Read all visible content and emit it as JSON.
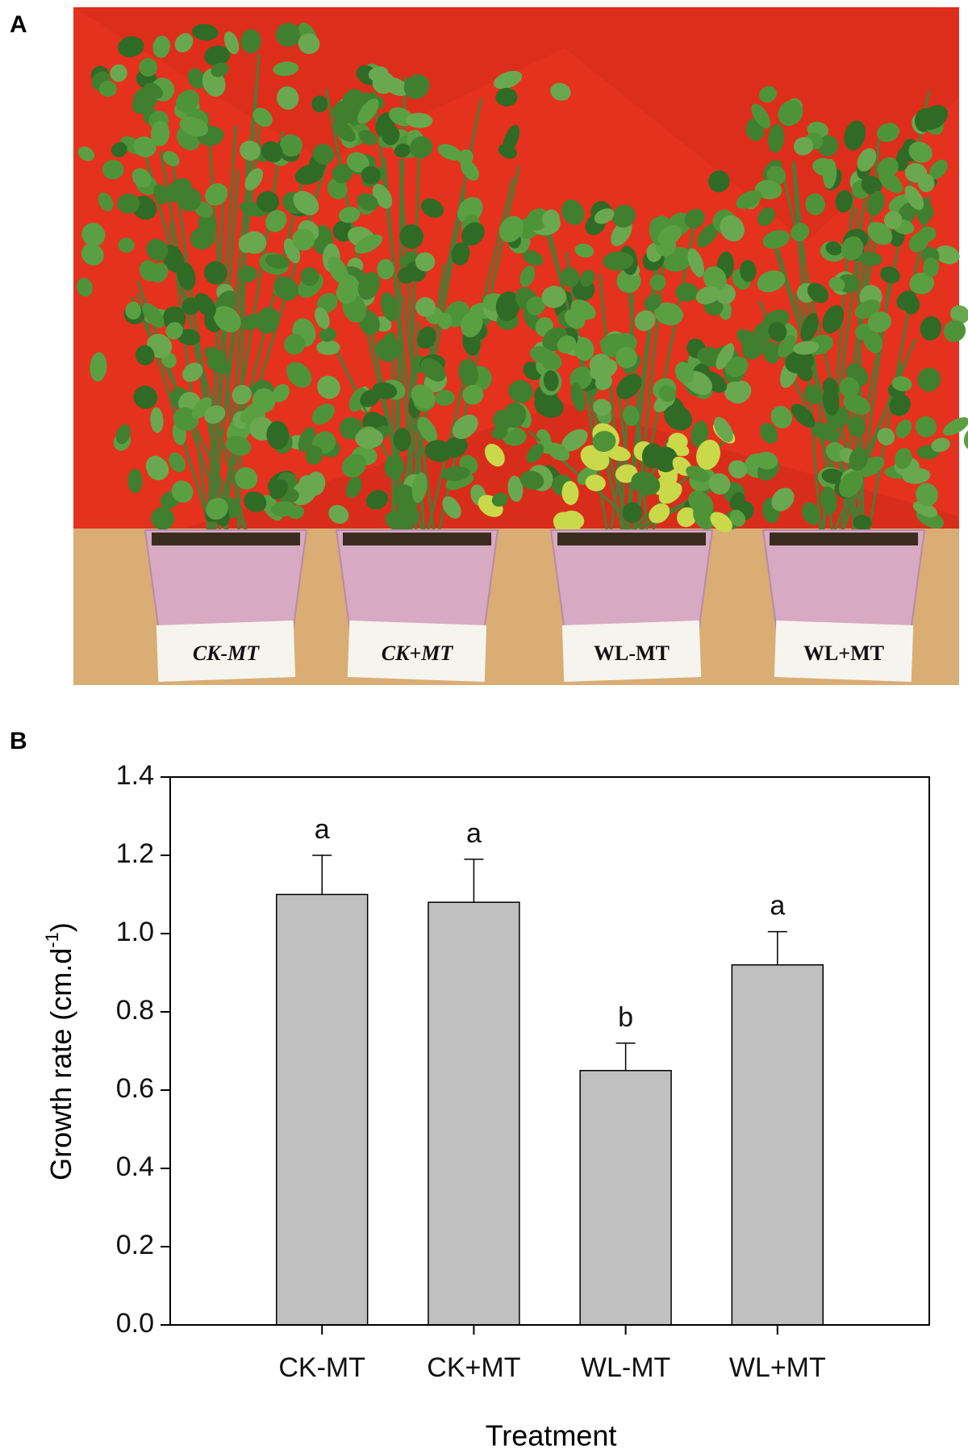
{
  "panel_a": {
    "label": "A",
    "pot_labels": [
      "CK-MT",
      "CK+MT",
      "WL-MT",
      "WL+MT"
    ]
  },
  "panel_b": {
    "label": "B"
  },
  "chart_data": {
    "type": "bar",
    "categories": [
      "CK-MT",
      "CK+MT",
      "WL-MT",
      "WL+MT"
    ],
    "values": [
      1.1,
      1.08,
      0.65,
      0.92
    ],
    "errors": [
      0.1,
      0.11,
      0.07,
      0.085
    ],
    "significance_letters": [
      "a",
      "a",
      "b",
      "a"
    ],
    "color": "#c0c0c0",
    "x_label": "Treatment",
    "y_label": "Growth rate (cm.d",
    "y_label_superscript": "-1",
    "y_label_end": ")",
    "ylim": [
      0,
      1.4
    ],
    "yticks": [
      {
        "value": 0,
        "label": "0.0"
      },
      0.2,
      0.4,
      0.6,
      0.8,
      {
        "value": 1,
        "label": "1.0"
      },
      1.2,
      1.4
    ],
    "grid": false
  }
}
